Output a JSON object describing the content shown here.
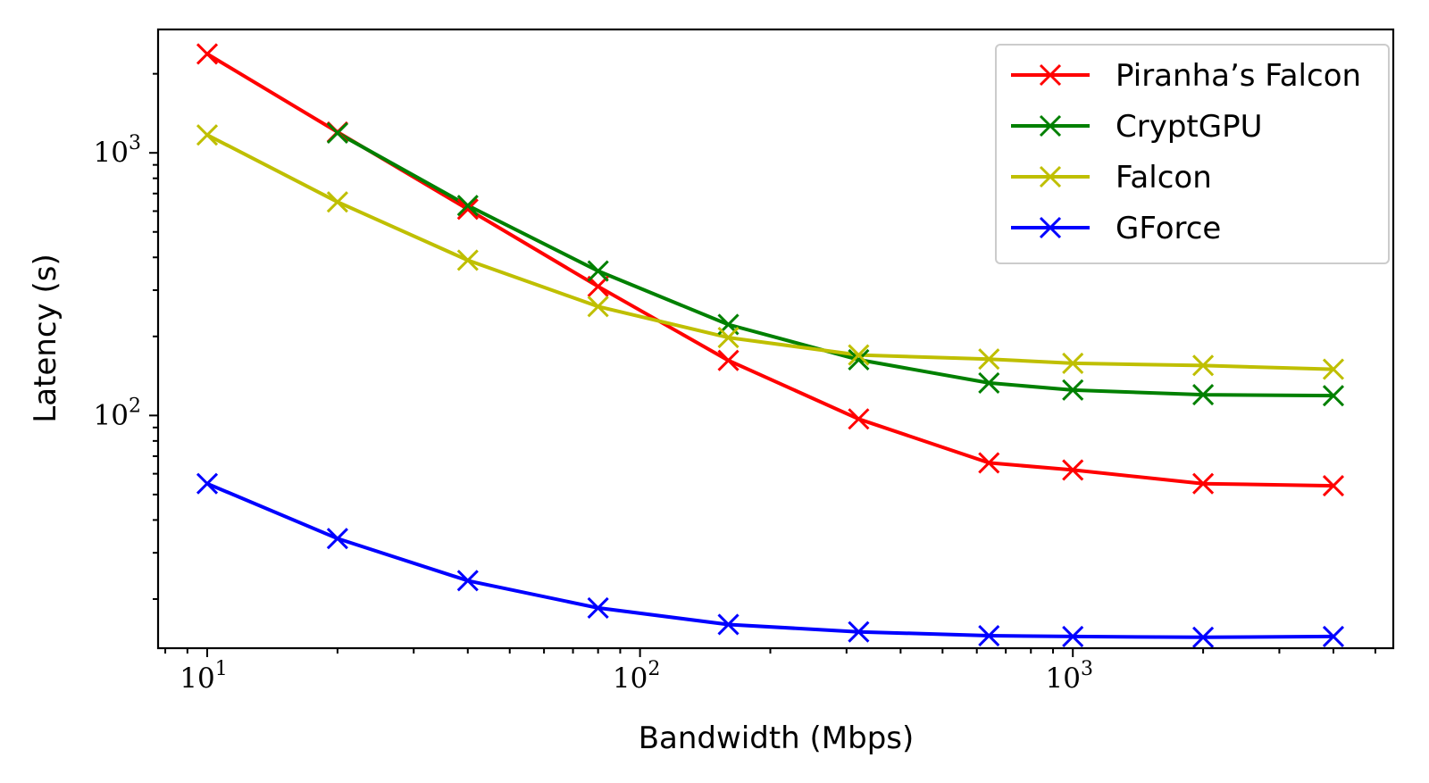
{
  "chart_data": {
    "type": "line",
    "title": "",
    "xlabel": "Bandwidth (Mbps)",
    "ylabel": "Latency (s)",
    "xscale": "log",
    "yscale": "log",
    "xlim": [
      7.7,
      5500
    ],
    "ylim": [
      13,
      2950
    ],
    "x": [
      10,
      20,
      40,
      80,
      160,
      320,
      640,
      1000,
      2000,
      4000
    ],
    "x_ticks": [
      {
        "base": "10",
        "exp": "1",
        "value": 10
      },
      {
        "base": "10",
        "exp": "2",
        "value": 100
      },
      {
        "base": "10",
        "exp": "3",
        "value": 1000
      }
    ],
    "y_ticks": [
      {
        "base": "10",
        "exp": "2",
        "value": 100
      },
      {
        "base": "10",
        "exp": "3",
        "value": 1000
      }
    ],
    "legend_position": "top-right",
    "marker": "x",
    "series": [
      {
        "name": "Piranha’s Falcon",
        "color": "#ff0000",
        "values": [
          2380,
          1200,
          610,
          310,
          162,
          97,
          66,
          62,
          55,
          54
        ]
      },
      {
        "name": "CryptGPU",
        "color": "#008000",
        "values": [
          null,
          1190,
          630,
          355,
          222,
          163,
          133,
          125,
          120,
          119
        ]
      },
      {
        "name": "Falcon",
        "color": "#bfbf00",
        "values": [
          1170,
          650,
          390,
          260,
          198,
          170,
          164,
          158,
          155,
          150
        ]
      },
      {
        "name": "GForce",
        "color": "#0000ff",
        "values": [
          55,
          34,
          23.5,
          18.5,
          16,
          15,
          14.5,
          14.4,
          14.3,
          14.4
        ]
      }
    ]
  }
}
